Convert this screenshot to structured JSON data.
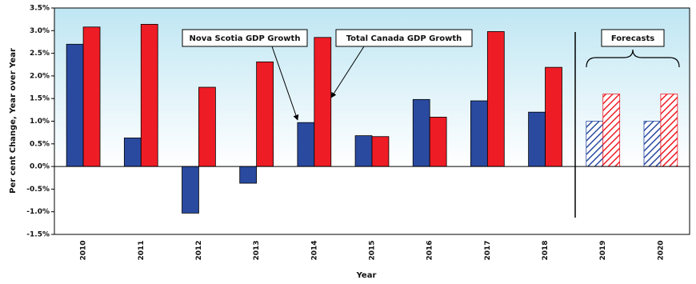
{
  "chart_data": {
    "type": "bar",
    "x_label": "Year",
    "y_label": "Per cent Change, Year over Year",
    "categories": [
      "2010",
      "2011",
      "2012",
      "2013",
      "2014",
      "2015",
      "2016",
      "2017",
      "2018",
      "2019",
      "2020"
    ],
    "series": [
      {
        "name": "Nova Scotia GDP Growth",
        "color": "#2a4aa0",
        "values": [
          2.7,
          0.63,
          -1.03,
          -0.37,
          0.97,
          0.68,
          1.48,
          1.45,
          1.2,
          1.0,
          1.0
        ]
      },
      {
        "name": "Total Canada GDP Growth",
        "color": "#ee1c25",
        "values": [
          3.08,
          3.14,
          1.75,
          2.31,
          2.85,
          0.66,
          1.09,
          2.98,
          2.19,
          1.6,
          1.6
        ]
      }
    ],
    "forecast_label": "Forecasts",
    "hatched": [
      false,
      false,
      false,
      false,
      false,
      false,
      false,
      false,
      false,
      true,
      true
    ],
    "ylim": [
      -1.5,
      3.5
    ],
    "yticks": [
      {
        "value": -1.5,
        "label": "-1.5%"
      },
      {
        "value": -1,
        "label": "-1.0%"
      },
      {
        "value": -0.5,
        "label": "-0.5%"
      },
      {
        "value": 0,
        "label": "0.0%"
      },
      {
        "value": 0.5,
        "label": "0.5%"
      },
      {
        "value": 1,
        "label": "1.0%"
      },
      {
        "value": 1.5,
        "label": "1.5%"
      },
      {
        "value": 2,
        "label": "2.0%"
      },
      {
        "value": 2.5,
        "label": "2.5%"
      },
      {
        "value": 3,
        "label": "3.0%"
      },
      {
        "value": 3.5,
        "label": "3.5%"
      }
    ]
  }
}
